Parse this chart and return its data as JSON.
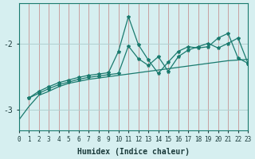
{
  "xlabel": "Humidex (Indice chaleur)",
  "ylabel": "",
  "bg_color": "#d6eff0",
  "line_color": "#1a7a6e",
  "xlim": [
    0,
    23
  ],
  "ylim": [
    -3.3,
    -1.4
  ],
  "yticks": [
    -3,
    -2
  ],
  "xticks": [
    0,
    1,
    2,
    3,
    4,
    5,
    6,
    7,
    8,
    9,
    10,
    11,
    12,
    13,
    14,
    15,
    16,
    17,
    18,
    19,
    20,
    21,
    22,
    23
  ],
  "line1_x": [
    0,
    1,
    2,
    3,
    4,
    5,
    6,
    7,
    8,
    9,
    10,
    11,
    12,
    13,
    14,
    15,
    16,
    17,
    18,
    19,
    20,
    21,
    22,
    23
  ],
  "line1_y": [
    -3.15,
    -2.95,
    -2.78,
    -2.72,
    -2.65,
    -2.6,
    -2.57,
    -2.54,
    -2.52,
    -2.5,
    -2.48,
    -2.46,
    -2.44,
    -2.42,
    -2.4,
    -2.38,
    -2.36,
    -2.34,
    -2.32,
    -2.3,
    -2.28,
    -2.26,
    -2.25,
    -2.24
  ],
  "line2_x": [
    1,
    2,
    3,
    4,
    5,
    6,
    7,
    8,
    9,
    10,
    11,
    12,
    13,
    14,
    15,
    16,
    17,
    18,
    19,
    20,
    21,
    22,
    23
  ],
  "line2_y": [
    -2.82,
    -2.75,
    -2.68,
    -2.62,
    -2.58,
    -2.54,
    -2.51,
    -2.49,
    -2.47,
    -2.45,
    -2.04,
    -2.23,
    -2.33,
    -2.2,
    -2.42,
    -2.2,
    -2.1,
    -2.05,
    -2.0,
    -2.07,
    -2.0,
    -1.92,
    -2.3
  ],
  "line3_x": [
    1,
    2,
    3,
    4,
    5,
    6,
    7,
    8,
    9,
    10,
    11,
    12,
    13,
    14,
    15,
    16,
    17,
    18,
    19,
    20,
    21,
    22,
    23
  ],
  "line3_y": [
    -2.82,
    -2.72,
    -2.65,
    -2.59,
    -2.55,
    -2.51,
    -2.48,
    -2.46,
    -2.44,
    -2.12,
    -1.6,
    -2.02,
    -2.25,
    -2.45,
    -2.28,
    -2.12,
    -2.05,
    -2.07,
    -2.05,
    -1.92,
    -1.85,
    -2.22,
    -2.3
  ],
  "vgrid_color": "#c8a0a0",
  "hgrid_color": "#b0d0d0"
}
